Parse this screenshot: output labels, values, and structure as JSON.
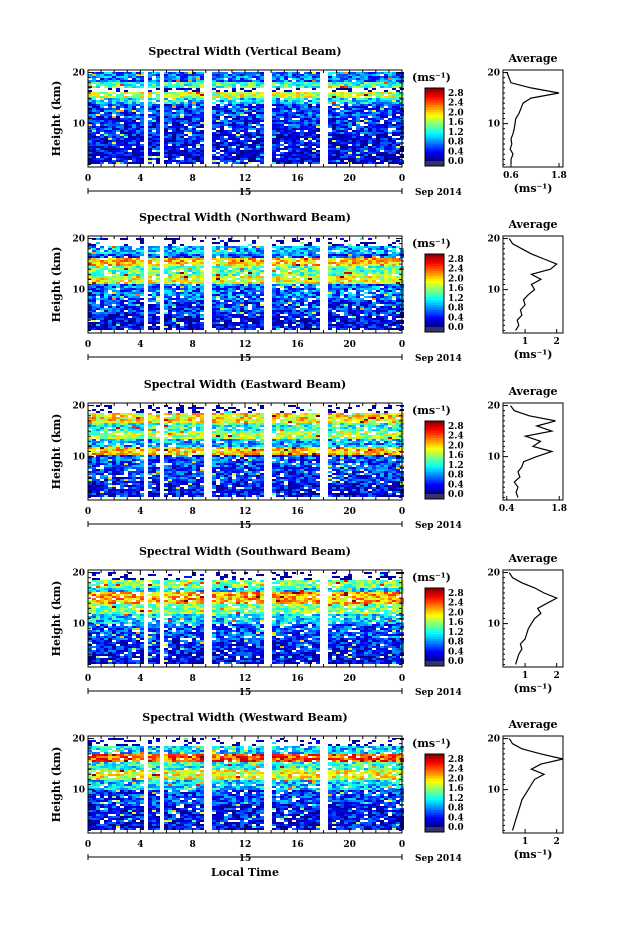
{
  "chart_data": [
    {
      "type": "heatmap",
      "title": "Spectral Width (Vertical Beam)",
      "ylabel": "Height (km)",
      "xlabel": "",
      "x_ticks": [
        "0",
        "4",
        "8",
        "12",
        "16",
        "20",
        "0"
      ],
      "xlim": [
        0,
        24
      ],
      "ylim": [
        1.5,
        20.5
      ],
      "y_ticks": [
        "20",
        "10"
      ],
      "date_day": "15",
      "date_label": "Sep 2014",
      "colorbar": {
        "unit": "(ms⁻¹)",
        "ticks": [
          "2.8",
          "2.4",
          "2.0",
          "1.6",
          "1.2",
          "0.8",
          "0.4",
          "0.0"
        ],
        "range": [
          0,
          3.0
        ]
      },
      "gaps_hours": [
        [
          4.2,
          4.7
        ],
        [
          5.6,
          5.9
        ],
        [
          8.9,
          9.4
        ],
        [
          13.3,
          14.2
        ],
        [
          17.8,
          18.3
        ]
      ],
      "bands": [
        {
          "from": 18.0,
          "to": 20.0,
          "value": 0.7
        },
        {
          "from": 17.0,
          "to": 18.0,
          "value": 1.3
        },
        {
          "from": 16.0,
          "to": 17.0,
          "value": 0.0
        },
        {
          "from": 15.0,
          "to": 16.0,
          "value": 1.7
        },
        {
          "from": 14.0,
          "to": 15.0,
          "value": 1.0
        },
        {
          "from": 11.0,
          "to": 14.0,
          "value": 0.55
        },
        {
          "from": 8.0,
          "to": 11.0,
          "value": 0.45
        },
        {
          "from": 5.0,
          "to": 8.0,
          "value": 0.35
        },
        {
          "from": 2.0,
          "to": 5.0,
          "value": 0.25
        }
      ],
      "average": {
        "title": "Average",
        "xlabel": "(ms⁻¹)",
        "x_ticks": [
          "0.6",
          "1.8"
        ],
        "xlim": [
          0.4,
          1.9
        ],
        "height": [
          2,
          3,
          4,
          5,
          6,
          7,
          8,
          9,
          10,
          11,
          12,
          13,
          14,
          15,
          16,
          17,
          18,
          19,
          20
        ],
        "values": [
          0.6,
          0.6,
          0.65,
          0.58,
          0.62,
          0.6,
          0.65,
          0.68,
          0.7,
          0.72,
          0.8,
          0.85,
          0.9,
          1.1,
          1.8,
          1.1,
          0.6,
          0.55,
          0.5
        ]
      }
    },
    {
      "type": "heatmap",
      "title": "Spectral Width (Northward Beam)",
      "ylabel": "Height (km)",
      "xlabel": "",
      "x_ticks": [
        "0",
        "4",
        "8",
        "12",
        "16",
        "20",
        "0"
      ],
      "xlim": [
        0,
        24
      ],
      "ylim": [
        1.5,
        20.5
      ],
      "y_ticks": [
        "20",
        "10"
      ],
      "date_day": "15",
      "date_label": "Sep 2014",
      "colorbar": {
        "unit": "(ms⁻¹)",
        "ticks": [
          "2.8",
          "2.4",
          "2.0",
          "1.6",
          "1.2",
          "0.8",
          "0.4",
          "0.0"
        ],
        "range": [
          0,
          3.0
        ]
      },
      "gaps_hours": [
        [
          4.2,
          4.7
        ],
        [
          5.6,
          5.9
        ],
        [
          8.9,
          9.4
        ],
        [
          13.3,
          14.2
        ],
        [
          17.8,
          18.3
        ]
      ],
      "bands": [
        {
          "from": 18.5,
          "to": 20.0,
          "value": 0.0
        },
        {
          "from": 17.0,
          "to": 18.5,
          "value": 0.9
        },
        {
          "from": 16.0,
          "to": 17.0,
          "value": 0.6
        },
        {
          "from": 14.5,
          "to": 16.0,
          "value": 2.0
        },
        {
          "from": 12.5,
          "to": 14.5,
          "value": 1.4
        },
        {
          "from": 11.0,
          "to": 12.5,
          "value": 1.8
        },
        {
          "from": 8.0,
          "to": 11.0,
          "value": 0.7
        },
        {
          "from": 5.0,
          "to": 8.0,
          "value": 0.5
        },
        {
          "from": 2.0,
          "to": 5.0,
          "value": 0.3
        }
      ],
      "average": {
        "title": "Average",
        "xlabel": "(ms⁻¹)",
        "x_ticks": [
          "1",
          "2"
        ],
        "xlim": [
          0.3,
          2.2
        ],
        "height": [
          2,
          3,
          4,
          5,
          6,
          7,
          8,
          9,
          10,
          11,
          12,
          13,
          14,
          15,
          16,
          17,
          18,
          19,
          20
        ],
        "values": [
          0.7,
          0.8,
          0.75,
          0.9,
          0.85,
          1.0,
          0.95,
          1.1,
          1.3,
          1.2,
          1.5,
          1.2,
          1.8,
          2.0,
          1.6,
          1.2,
          0.9,
          0.6,
          0.5
        ]
      }
    },
    {
      "type": "heatmap",
      "title": "Spectral Width (Eastward Beam)",
      "ylabel": "Height (km)",
      "xlabel": "",
      "x_ticks": [
        "0",
        "4",
        "8",
        "12",
        "16",
        "20",
        "0"
      ],
      "xlim": [
        0,
        24
      ],
      "ylim": [
        1.5,
        20.5
      ],
      "y_ticks": [
        "20",
        "10"
      ],
      "date_day": "15",
      "date_label": "Sep 2014",
      "colorbar": {
        "unit": "(ms⁻¹)",
        "ticks": [
          "2.8",
          "2.4",
          "2.0",
          "1.6",
          "1.2",
          "0.8",
          "0.4",
          "0.0"
        ],
        "range": [
          0,
          3.0
        ]
      },
      "gaps_hours": [
        [
          4.2,
          4.7
        ],
        [
          5.6,
          5.9
        ],
        [
          8.9,
          9.4
        ],
        [
          13.3,
          14.2
        ],
        [
          17.8,
          18.3
        ]
      ],
      "bands": [
        {
          "from": 18.5,
          "to": 20.0,
          "value": 0.0
        },
        {
          "from": 16.5,
          "to": 18.5,
          "value": 1.9
        },
        {
          "from": 15.0,
          "to": 16.5,
          "value": 1.2
        },
        {
          "from": 13.5,
          "to": 15.0,
          "value": 1.6
        },
        {
          "from": 12.0,
          "to": 13.5,
          "value": 0.9
        },
        {
          "from": 10.5,
          "to": 12.0,
          "value": 2.0
        },
        {
          "from": 8.0,
          "to": 10.5,
          "value": 0.6
        },
        {
          "from": 5.0,
          "to": 8.0,
          "value": 0.5
        },
        {
          "from": 2.0,
          "to": 5.0,
          "value": 0.35
        }
      ],
      "average": {
        "title": "Average",
        "xlabel": "",
        "x_ticks": [
          "0.4",
          "1.8"
        ],
        "xlim": [
          0.3,
          1.9
        ],
        "height": [
          2,
          3,
          4,
          5,
          6,
          7,
          8,
          9,
          10,
          11,
          12,
          13,
          14,
          15,
          16,
          17,
          18,
          19,
          20
        ],
        "values": [
          0.7,
          0.65,
          0.7,
          0.6,
          0.75,
          0.7,
          0.8,
          0.85,
          1.2,
          1.6,
          1.1,
          1.3,
          0.9,
          1.6,
          1.2,
          1.7,
          1.0,
          0.6,
          0.5
        ]
      }
    },
    {
      "type": "heatmap",
      "title": "Spectral Width (Southward Beam)",
      "ylabel": "Height (km)",
      "xlabel": "",
      "x_ticks": [
        "0",
        "4",
        "8",
        "12",
        "16",
        "20",
        "0"
      ],
      "xlim": [
        0,
        24
      ],
      "ylim": [
        1.5,
        20.5
      ],
      "y_ticks": [
        "20",
        "10"
      ],
      "date_day": "15",
      "date_label": "Sep 2014",
      "colorbar": {
        "unit": "(ms⁻¹)",
        "ticks": [
          "2.8",
          "2.4",
          "2.0",
          "1.6",
          "1.2",
          "0.8",
          "0.4",
          "0.0"
        ],
        "range": [
          0,
          3.0
        ]
      },
      "gaps_hours": [
        [
          4.2,
          4.7
        ],
        [
          5.6,
          5.9
        ],
        [
          8.9,
          9.4
        ],
        [
          13.3,
          14.2
        ],
        [
          17.8,
          18.3
        ]
      ],
      "bands": [
        {
          "from": 18.5,
          "to": 20.0,
          "value": 0.0
        },
        {
          "from": 17.0,
          "to": 18.5,
          "value": 1.5
        },
        {
          "from": 16.0,
          "to": 17.0,
          "value": 1.0
        },
        {
          "from": 14.0,
          "to": 16.0,
          "value": 2.1
        },
        {
          "from": 12.0,
          "to": 14.0,
          "value": 1.5
        },
        {
          "from": 10.0,
          "to": 12.0,
          "value": 1.0
        },
        {
          "from": 7.0,
          "to": 10.0,
          "value": 0.6
        },
        {
          "from": 4.0,
          "to": 7.0,
          "value": 0.45
        },
        {
          "from": 2.0,
          "to": 4.0,
          "value": 0.3
        }
      ],
      "average": {
        "title": "Average",
        "xlabel": "(ms⁻¹)",
        "x_ticks": [
          "1",
          "2"
        ],
        "xlim": [
          0.3,
          2.2
        ],
        "height": [
          2,
          3,
          4,
          5,
          6,
          7,
          8,
          9,
          10,
          11,
          12,
          13,
          14,
          15,
          16,
          17,
          18,
          19,
          20
        ],
        "values": [
          0.7,
          0.75,
          0.8,
          0.9,
          0.85,
          1.0,
          1.05,
          1.1,
          1.2,
          1.3,
          1.5,
          1.4,
          1.7,
          2.0,
          1.6,
          1.3,
          0.9,
          0.6,
          0.5
        ]
      }
    },
    {
      "type": "heatmap",
      "title": "Spectral Width (Westward Beam)",
      "ylabel": "Height (km)",
      "xlabel": "Local Time",
      "x_ticks": [
        "0",
        "4",
        "8",
        "12",
        "16",
        "20",
        "0"
      ],
      "xlim": [
        0,
        24
      ],
      "ylim": [
        1.5,
        20.5
      ],
      "y_ticks": [
        "20",
        "10"
      ],
      "date_day": "15",
      "date_label": "Sep 2014",
      "colorbar": {
        "unit": "(ms⁻¹)",
        "ticks": [
          "2.8",
          "2.4",
          "2.0",
          "1.6",
          "1.2",
          "0.8",
          "0.4",
          "0.0"
        ],
        "range": [
          0,
          3.0
        ]
      },
      "gaps_hours": [
        [
          4.2,
          4.7
        ],
        [
          5.6,
          5.9
        ],
        [
          8.9,
          9.4
        ],
        [
          13.3,
          14.2
        ],
        [
          17.8,
          18.3
        ]
      ],
      "bands": [
        {
          "from": 18.5,
          "to": 20.0,
          "value": 0.0
        },
        {
          "from": 17.0,
          "to": 18.5,
          "value": 1.0
        },
        {
          "from": 15.5,
          "to": 17.0,
          "value": 2.4
        },
        {
          "from": 14.0,
          "to": 15.5,
          "value": 1.2
        },
        {
          "from": 12.0,
          "to": 14.0,
          "value": 1.8
        },
        {
          "from": 10.0,
          "to": 12.0,
          "value": 1.0
        },
        {
          "from": 7.0,
          "to": 10.0,
          "value": 0.55
        },
        {
          "from": 4.0,
          "to": 7.0,
          "value": 0.4
        },
        {
          "from": 2.0,
          "to": 4.0,
          "value": 0.3
        }
      ],
      "average": {
        "title": "Average",
        "xlabel": "(ms⁻¹)",
        "x_ticks": [
          "1",
          "2"
        ],
        "xlim": [
          0.3,
          2.2
        ],
        "height": [
          2,
          3,
          4,
          5,
          6,
          7,
          8,
          9,
          10,
          11,
          12,
          13,
          14,
          15,
          16,
          17,
          18,
          19,
          20
        ],
        "values": [
          0.6,
          0.65,
          0.7,
          0.75,
          0.8,
          0.85,
          0.9,
          1.0,
          1.1,
          1.2,
          1.3,
          1.6,
          1.2,
          1.5,
          2.2,
          1.5,
          0.9,
          0.6,
          0.5
        ]
      }
    }
  ]
}
